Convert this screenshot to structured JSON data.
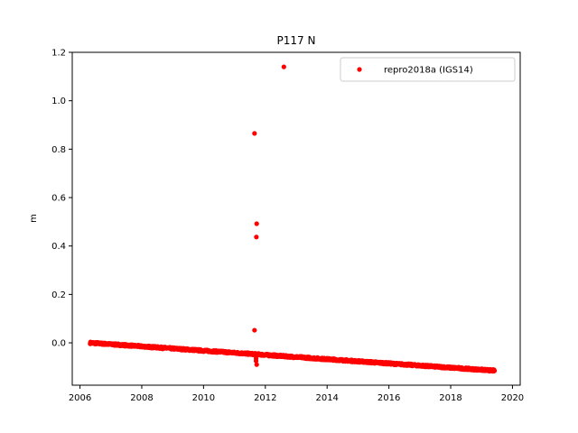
{
  "chart_data": {
    "type": "scatter",
    "title": "P117 N",
    "xlabel": "",
    "ylabel": "m",
    "xlim": [
      2005.75,
      2020.25
    ],
    "ylim": [
      -0.175,
      1.2
    ],
    "xticks": [
      2006,
      2008,
      2010,
      2012,
      2014,
      2016,
      2018,
      2020
    ],
    "xtick_labels": [
      "2006",
      "2008",
      "2010",
      "2012",
      "2014",
      "2016",
      "2018",
      "2020"
    ],
    "yticks": [
      0.0,
      0.2,
      0.4,
      0.6,
      0.8,
      1.0,
      1.2
    ],
    "ytick_labels": [
      "0.0",
      "0.2",
      "0.4",
      "0.6",
      "0.8",
      "1.0",
      "1.2"
    ],
    "grid": false,
    "legend_position": "top-right",
    "series": [
      {
        "name": "repro2018a (IGS14)",
        "color": "#ff0000",
        "marker": "circle",
        "trend": {
          "x_start": 2006.33,
          "y_start": 0.0,
          "x_end": 2019.42,
          "y_end": -0.115
        },
        "outliers": [
          {
            "x": 2011.65,
            "y": 0.865
          },
          {
            "x": 2011.72,
            "y": 0.492
          },
          {
            "x": 2011.71,
            "y": 0.437
          },
          {
            "x": 2011.65,
            "y": 0.052
          },
          {
            "x": 2011.7,
            "y": -0.065
          },
          {
            "x": 2011.7,
            "y": -0.075
          },
          {
            "x": 2011.72,
            "y": -0.09
          },
          {
            "x": 2012.6,
            "y": 1.14
          }
        ]
      }
    ]
  }
}
